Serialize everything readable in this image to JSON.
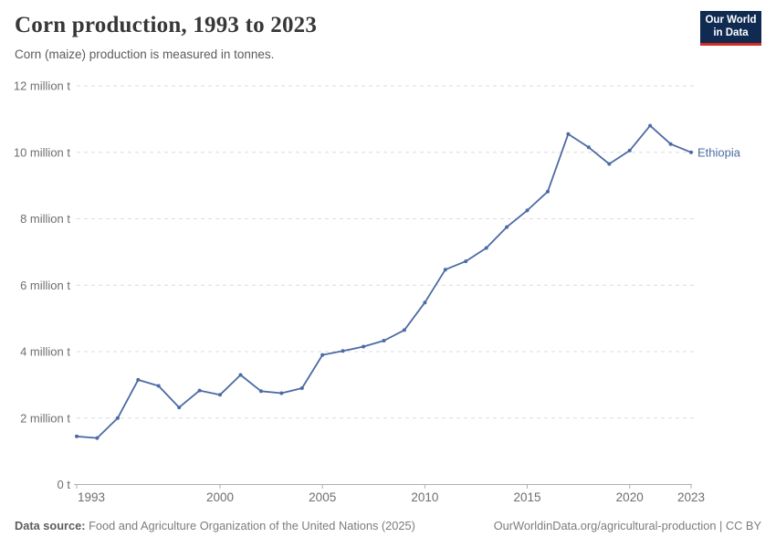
{
  "header": {
    "title": "Corn production, 1993 to 2023",
    "subtitle": "Corn (maize) production is measured in tonnes."
  },
  "logo": {
    "line1": "Our World",
    "line2": "in Data",
    "bg_color": "#102a52",
    "accent_color": "#d42b21"
  },
  "chart_data": {
    "type": "line",
    "title": "Corn production, 1993 to 2023",
    "subtitle": "Corn (maize) production is measured in tonnes.",
    "unit": "million tonnes",
    "x": [
      1993,
      1994,
      1995,
      1996,
      1997,
      1998,
      1999,
      2000,
      2001,
      2002,
      2003,
      2004,
      2005,
      2006,
      2007,
      2008,
      2009,
      2010,
      2011,
      2012,
      2013,
      2014,
      2015,
      2016,
      2017,
      2018,
      2019,
      2020,
      2021,
      2022,
      2023
    ],
    "series": [
      {
        "name": "Ethiopia",
        "color": "#4C6BA3",
        "values": [
          1.45,
          1.4,
          2.0,
          3.15,
          2.97,
          2.32,
          2.83,
          2.7,
          3.3,
          2.81,
          2.75,
          2.9,
          3.9,
          4.02,
          4.15,
          4.33,
          4.65,
          5.48,
          6.47,
          6.72,
          7.12,
          7.75,
          8.25,
          8.82,
          10.55,
          10.15,
          9.65,
          10.05,
          10.8,
          10.25,
          10.0
        ]
      }
    ],
    "xlim": [
      1993,
      2023
    ],
    "ylim": [
      0,
      12
    ],
    "y_ticks": [
      {
        "value": 0,
        "label": "0 t"
      },
      {
        "value": 2,
        "label": "2 million t"
      },
      {
        "value": 4,
        "label": "4 million t"
      },
      {
        "value": 6,
        "label": "6 million t"
      },
      {
        "value": 8,
        "label": "8 million t"
      },
      {
        "value": 10,
        "label": "10 million t"
      },
      {
        "value": 12,
        "label": "12 million t"
      }
    ],
    "x_ticks": [
      1993,
      2000,
      2005,
      2010,
      2015,
      2020,
      2023
    ],
    "grid": "dashed-horizontal",
    "legend_position": "end-of-line-label",
    "grid_color": "#dcdcdc",
    "axis_color": "#b0b0b0",
    "tick_text_color": "#6e6e6e"
  },
  "footer": {
    "source_label": "Data source:",
    "source_text": " Food and Agriculture Organization of the United Nations (2025)",
    "link_text": "OurWorldinData.org/agricultural-production | CC BY"
  }
}
